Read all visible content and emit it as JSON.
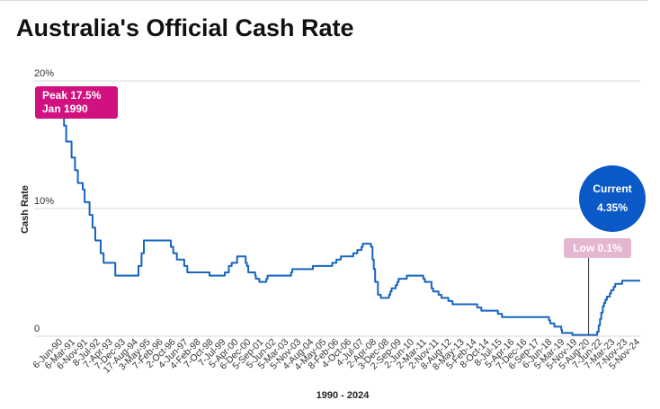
{
  "page": {
    "title": "Australia's Official Cash Rate"
  },
  "annotations": {
    "peak_line1": "Peak 17.5%",
    "peak_line2": "Jan 1990",
    "low": "Low 0.1%",
    "current_line1": "Current",
    "current_line2": "4.35%"
  },
  "colors": {
    "line": "#1565c0",
    "peak": "#d1117f",
    "low": "#e4b6cf",
    "current": "#0a59c7",
    "grid": "#d9d9d9"
  },
  "chart_data": {
    "type": "line",
    "title": "Australia's Official Cash Rate",
    "xlabel": "1990 - 2024",
    "ylabel": "Cash Rate",
    "ylim": [
      0,
      20
    ],
    "y_ticks": [
      {
        "value": 0,
        "label": "0"
      },
      {
        "value": 10,
        "label": "10%"
      },
      {
        "value": 20,
        "label": "20%"
      }
    ],
    "grid": true,
    "xlim": [
      "1990-01-23",
      "2024-12-10"
    ],
    "x_tick_labels": [
      "6-Jun-90",
      "6-Mar-91",
      "6-Nov-91",
      "8-Jul-92",
      "7-Apr-93",
      "7-Dec-93",
      "17-Aug-94",
      "3-May-95",
      "7-Feb-96",
      "2-Oct-96",
      "4-Jun-97",
      "4-Feb-98",
      "7-Oct-98",
      "7-Jul-99",
      "5-Apr-00",
      "6-Dec-00",
      "5-Sep-01",
      "5-Jun-02",
      "5-Mar-03",
      "5-Nov-03",
      "4-Aug-04",
      "4-May-05",
      "8-Feb-06",
      "4-Oct-06",
      "4-Jul-07",
      "2-Apr-08",
      "3-Dec-08",
      "2-Sep-09",
      "2-Jun-10",
      "2-Mar-11",
      "2-Nov-11",
      "8-Aug-12",
      "8-May-13",
      "5-Feb-14",
      "8-Oct-14",
      "8-Jul-15",
      "5-Apr-16",
      "7-Dec-16",
      "6-Sep-17",
      "6-Jun-18",
      "5-Mar-19",
      "5-Nov-19",
      "5-Aug-20",
      "7-Jun-22",
      "7-Mar-23",
      "7-Nov-23",
      "5-Nov-24"
    ],
    "series": [
      {
        "values": [
          [
            "1990-01-23",
            17.5
          ],
          [
            "1990-02-15",
            16.5
          ],
          [
            "1990-04-04",
            15.25
          ],
          [
            "1990-08-02",
            14.0
          ],
          [
            "1990-10-15",
            13.0
          ],
          [
            "1990-12-18",
            12.0
          ],
          [
            "1991-04-04",
            11.5
          ],
          [
            "1991-05-16",
            10.5
          ],
          [
            "1991-09-03",
            9.5
          ],
          [
            "1991-11-06",
            8.5
          ],
          [
            "1992-01-08",
            7.5
          ],
          [
            "1992-05-06",
            6.5
          ],
          [
            "1992-07-08",
            5.75
          ],
          [
            "1993-03-23",
            4.75
          ],
          [
            "1994-08-17",
            5.5
          ],
          [
            "1994-10-24",
            6.5
          ],
          [
            "1994-12-14",
            7.5
          ],
          [
            "1996-07-31",
            7.0
          ],
          [
            "1996-09-23",
            6.5
          ],
          [
            "1996-12-11",
            6.0
          ],
          [
            "1997-05-23",
            5.5
          ],
          [
            "1997-07-30",
            5.0
          ],
          [
            "1998-12-02",
            4.75
          ],
          [
            "1999-11-03",
            5.0
          ],
          [
            "2000-02-02",
            5.5
          ],
          [
            "2000-04-05",
            5.75
          ],
          [
            "2000-08-02",
            6.25
          ],
          [
            "2001-02-07",
            5.75
          ],
          [
            "2001-03-07",
            5.5
          ],
          [
            "2001-04-04",
            5.0
          ],
          [
            "2001-09-05",
            4.75
          ],
          [
            "2001-09-19",
            4.5
          ],
          [
            "2001-10-03",
            4.5
          ],
          [
            "2001-12-05",
            4.25
          ],
          [
            "2002-05-08",
            4.5
          ],
          [
            "2002-06-05",
            4.75
          ],
          [
            "2003-11-05",
            5.0
          ],
          [
            "2003-12-03",
            5.25
          ],
          [
            "2005-03-02",
            5.5
          ],
          [
            "2006-05-03",
            5.75
          ],
          [
            "2006-08-02",
            6.0
          ],
          [
            "2006-11-08",
            6.25
          ],
          [
            "2007-08-08",
            6.5
          ],
          [
            "2007-11-07",
            6.75
          ],
          [
            "2008-02-06",
            7.0
          ],
          [
            "2008-03-05",
            7.25
          ],
          [
            "2008-09-03",
            7.0
          ],
          [
            "2008-10-08",
            6.0
          ],
          [
            "2008-11-05",
            5.25
          ],
          [
            "2008-12-03",
            4.25
          ],
          [
            "2009-02-04",
            3.25
          ],
          [
            "2009-04-08",
            3.0
          ],
          [
            "2009-10-07",
            3.25
          ],
          [
            "2009-11-04",
            3.5
          ],
          [
            "2009-12-02",
            3.75
          ],
          [
            "2010-03-03",
            4.0
          ],
          [
            "2010-04-07",
            4.25
          ],
          [
            "2010-05-05",
            4.5
          ],
          [
            "2010-11-03",
            4.75
          ],
          [
            "2011-11-02",
            4.5
          ],
          [
            "2011-12-07",
            4.25
          ],
          [
            "2012-05-02",
            3.75
          ],
          [
            "2012-06-06",
            3.5
          ],
          [
            "2012-10-03",
            3.25
          ],
          [
            "2012-12-05",
            3.0
          ],
          [
            "2013-05-08",
            2.75
          ],
          [
            "2013-08-07",
            2.5
          ],
          [
            "2015-02-04",
            2.25
          ],
          [
            "2015-05-06",
            2.0
          ],
          [
            "2016-05-04",
            1.75
          ],
          [
            "2016-08-03",
            1.5
          ],
          [
            "2019-06-05",
            1.25
          ],
          [
            "2019-07-03",
            1.0
          ],
          [
            "2019-10-02",
            0.75
          ],
          [
            "2020-03-04",
            0.5
          ],
          [
            "2020-03-20",
            0.25
          ],
          [
            "2020-11-04",
            0.1
          ],
          [
            "2022-05-04",
            0.35
          ],
          [
            "2022-06-08",
            0.85
          ],
          [
            "2022-07-06",
            1.35
          ],
          [
            "2022-08-03",
            1.85
          ],
          [
            "2022-09-07",
            2.35
          ],
          [
            "2022-10-05",
            2.6
          ],
          [
            "2022-11-02",
            2.85
          ],
          [
            "2022-12-07",
            3.1
          ],
          [
            "2023-02-08",
            3.35
          ],
          [
            "2023-03-08",
            3.6
          ],
          [
            "2023-05-03",
            3.85
          ],
          [
            "2023-06-07",
            4.1
          ],
          [
            "2023-11-08",
            4.35
          ],
          [
            "2024-12-10",
            4.35
          ]
        ]
      }
    ]
  }
}
